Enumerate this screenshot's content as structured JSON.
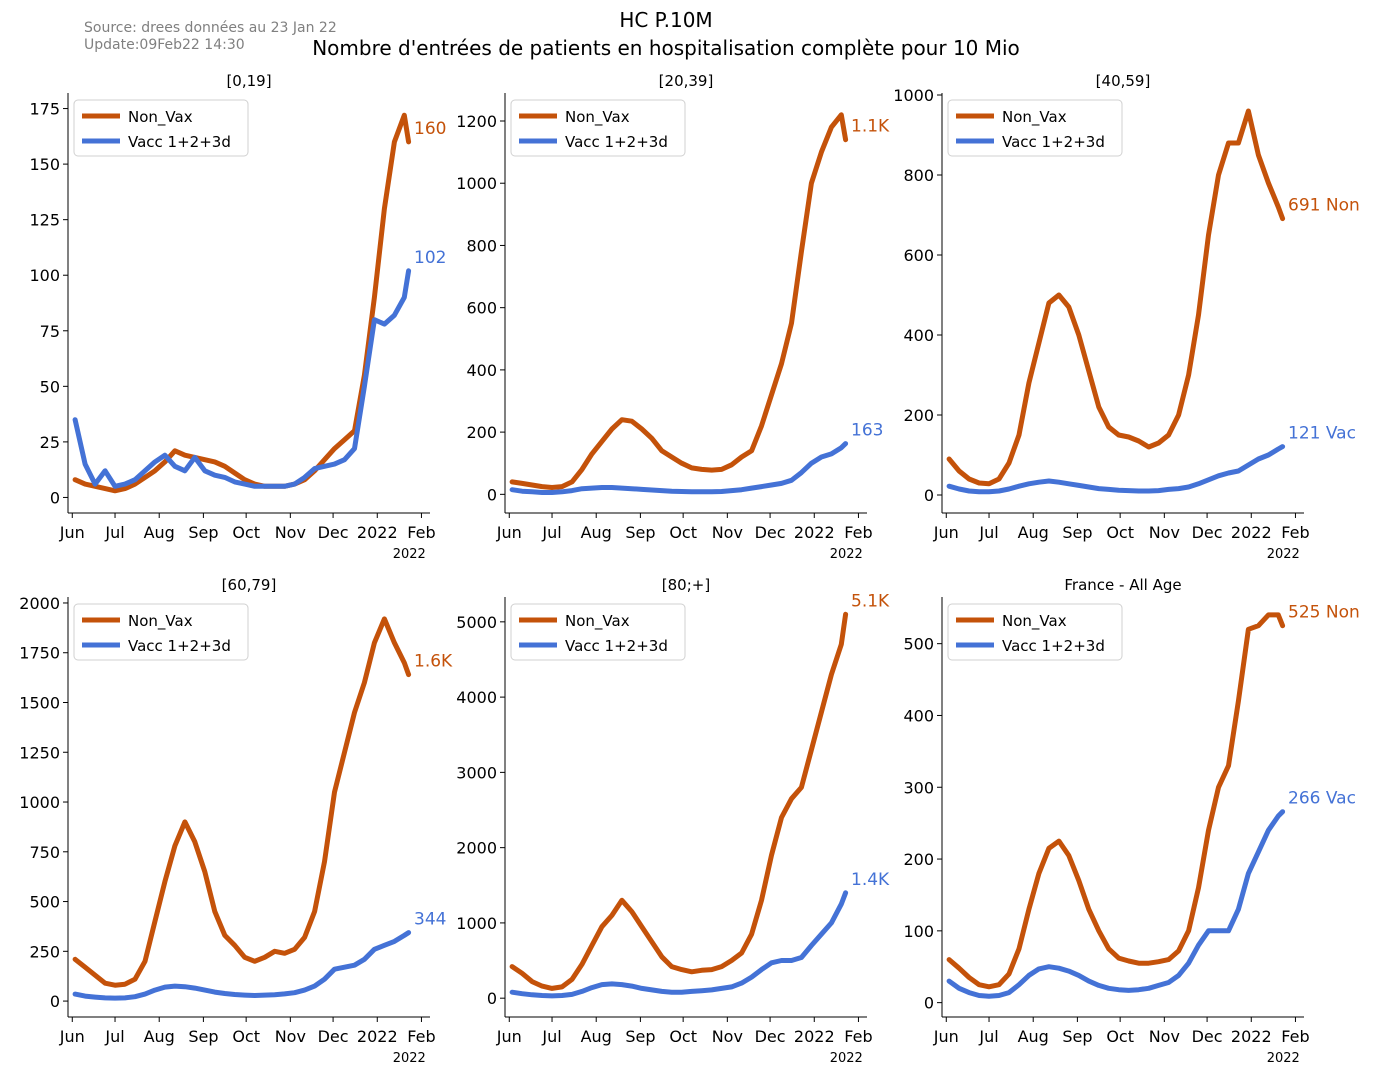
{
  "header": {
    "source": "Source: drees données au 23 Jan 22",
    "update": "Update:09Feb22 14:30",
    "title": "HC P.10M",
    "subtitle": "Nombre d'entrées de patients en hospitalisation complète pour 10 Mio"
  },
  "colors": {
    "non_vax": "#c4520a",
    "vacc": "#4472d6",
    "axis": "#000000"
  },
  "x_tick_labels": [
    "Jun",
    "Jul",
    "Aug",
    "Sep",
    "Oct",
    "Nov",
    "Dec",
    "2022",
    "Feb"
  ],
  "x_year_label": "2022",
  "chart_data": [
    {
      "type": "line",
      "title": "[0,19]",
      "legend": "top-left",
      "x": [
        "2021-06-03",
        "2021-06-10",
        "2021-06-17",
        "2021-06-24",
        "2021-07-01",
        "2021-07-08",
        "2021-07-15",
        "2021-07-22",
        "2021-07-29",
        "2021-08-05",
        "2021-08-12",
        "2021-08-19",
        "2021-08-26",
        "2021-09-02",
        "2021-09-09",
        "2021-09-16",
        "2021-09-23",
        "2021-09-30",
        "2021-10-07",
        "2021-10-14",
        "2021-10-21",
        "2021-10-28",
        "2021-11-04",
        "2021-11-11",
        "2021-11-18",
        "2021-11-25",
        "2021-12-02",
        "2021-12-09",
        "2021-12-16",
        "2021-12-23",
        "2021-12-30",
        "2022-01-06",
        "2022-01-13",
        "2022-01-20",
        "2022-01-23"
      ],
      "series": [
        {
          "name": "Non_Vax",
          "values": [
            8,
            6,
            5,
            4,
            3,
            4,
            6,
            9,
            12,
            16,
            21,
            19,
            18,
            17,
            16,
            14,
            11,
            8,
            6,
            5,
            5,
            5,
            6,
            8,
            12,
            17,
            22,
            26,
            30,
            55,
            90,
            130,
            160,
            172,
            160
          ]
        },
        {
          "name": "Vacc 1+2+3d",
          "values": [
            35,
            15,
            6,
            12,
            5,
            6,
            8,
            12,
            16,
            19,
            14,
            12,
            18,
            12,
            10,
            9,
            7,
            6,
            5,
            5,
            5,
            5,
            6,
            9,
            13,
            14,
            15,
            17,
            22,
            50,
            80,
            78,
            82,
            90,
            102
          ]
        }
      ],
      "end_labels": {
        "non_vax": "160",
        "vacc": "102"
      },
      "y_ticks": [
        0,
        25,
        50,
        75,
        100,
        125,
        150,
        175
      ],
      "ylim": [
        -7,
        182
      ]
    },
    {
      "type": "line",
      "title": "[20,39]",
      "legend": "top-left",
      "x": [
        "2021-06-03",
        "2021-06-10",
        "2021-06-17",
        "2021-06-24",
        "2021-07-01",
        "2021-07-08",
        "2021-07-15",
        "2021-07-22",
        "2021-07-29",
        "2021-08-05",
        "2021-08-12",
        "2021-08-19",
        "2021-08-26",
        "2021-09-02",
        "2021-09-09",
        "2021-09-16",
        "2021-09-23",
        "2021-09-30",
        "2021-10-07",
        "2021-10-14",
        "2021-10-21",
        "2021-10-28",
        "2021-11-04",
        "2021-11-11",
        "2021-11-18",
        "2021-11-25",
        "2021-12-02",
        "2021-12-09",
        "2021-12-16",
        "2021-12-23",
        "2021-12-30",
        "2022-01-06",
        "2022-01-13",
        "2022-01-20",
        "2022-01-23"
      ],
      "series": [
        {
          "name": "Non_Vax",
          "values": [
            40,
            35,
            30,
            25,
            22,
            25,
            40,
            80,
            130,
            170,
            210,
            240,
            235,
            210,
            180,
            140,
            120,
            100,
            85,
            80,
            78,
            80,
            95,
            120,
            140,
            220,
            320,
            420,
            550,
            780,
            1000,
            1100,
            1180,
            1220,
            1140
          ]
        },
        {
          "name": "Vacc 1+2+3d",
          "values": [
            15,
            10,
            8,
            6,
            6,
            8,
            12,
            18,
            20,
            22,
            22,
            20,
            18,
            16,
            14,
            12,
            10,
            9,
            8,
            8,
            8,
            9,
            12,
            15,
            20,
            25,
            30,
            35,
            45,
            70,
            100,
            120,
            130,
            150,
            163
          ]
        }
      ],
      "end_labels": {
        "non_vax": "1.1K",
        "vacc": "163"
      },
      "y_ticks": [
        0,
        200,
        400,
        600,
        800,
        1000,
        1200
      ],
      "ylim": [
        -60,
        1290
      ]
    },
    {
      "type": "line",
      "title": "[40,59]",
      "legend": "top-left",
      "x": [
        "2021-06-03",
        "2021-06-10",
        "2021-06-17",
        "2021-06-24",
        "2021-07-01",
        "2021-07-08",
        "2021-07-15",
        "2021-07-22",
        "2021-07-29",
        "2021-08-05",
        "2021-08-12",
        "2021-08-19",
        "2021-08-26",
        "2021-09-02",
        "2021-09-09",
        "2021-09-16",
        "2021-09-23",
        "2021-09-30",
        "2021-10-07",
        "2021-10-14",
        "2021-10-21",
        "2021-10-28",
        "2021-11-04",
        "2021-11-11",
        "2021-11-18",
        "2021-11-25",
        "2021-12-02",
        "2021-12-09",
        "2021-12-16",
        "2021-12-23",
        "2021-12-30",
        "2022-01-06",
        "2022-01-13",
        "2022-01-20",
        "2022-01-23"
      ],
      "series": [
        {
          "name": "Non_Vax",
          "values": [
            90,
            60,
            40,
            30,
            28,
            40,
            80,
            150,
            280,
            380,
            480,
            500,
            470,
            400,
            310,
            220,
            170,
            150,
            145,
            135,
            120,
            130,
            150,
            200,
            300,
            450,
            650,
            800,
            880,
            880,
            960,
            850,
            780,
            720,
            691
          ]
        },
        {
          "name": "Vacc 1+2+3d",
          "values": [
            22,
            15,
            10,
            8,
            8,
            10,
            15,
            22,
            28,
            32,
            35,
            32,
            28,
            24,
            20,
            16,
            14,
            12,
            11,
            10,
            10,
            11,
            14,
            16,
            20,
            28,
            38,
            48,
            55,
            60,
            75,
            90,
            100,
            115,
            121
          ]
        }
      ],
      "end_labels": {
        "non_vax": "691 Non",
        "vacc": "121 Vac"
      },
      "y_ticks": [
        0,
        200,
        400,
        600,
        800,
        1000
      ],
      "ylim": [
        -45,
        1005
      ]
    },
    {
      "type": "line",
      "title": "[60,79]",
      "legend": "top-left",
      "x": [
        "2021-06-03",
        "2021-06-10",
        "2021-06-17",
        "2021-06-24",
        "2021-07-01",
        "2021-07-08",
        "2021-07-15",
        "2021-07-22",
        "2021-07-29",
        "2021-08-05",
        "2021-08-12",
        "2021-08-19",
        "2021-08-26",
        "2021-09-02",
        "2021-09-09",
        "2021-09-16",
        "2021-09-23",
        "2021-09-30",
        "2021-10-07",
        "2021-10-14",
        "2021-10-21",
        "2021-10-28",
        "2021-11-04",
        "2021-11-11",
        "2021-11-18",
        "2021-11-25",
        "2021-12-02",
        "2021-12-09",
        "2021-12-16",
        "2021-12-23",
        "2021-12-30",
        "2022-01-06",
        "2022-01-13",
        "2022-01-20",
        "2022-01-23"
      ],
      "series": [
        {
          "name": "Non_Vax",
          "values": [
            210,
            170,
            130,
            90,
            80,
            85,
            110,
            200,
            400,
            600,
            780,
            900,
            800,
            650,
            450,
            330,
            280,
            220,
            200,
            220,
            250,
            240,
            260,
            320,
            450,
            700,
            1050,
            1250,
            1450,
            1600,
            1800,
            1920,
            1800,
            1700,
            1640
          ]
        },
        {
          "name": "Vacc 1+2+3d",
          "values": [
            35,
            25,
            20,
            16,
            15,
            16,
            22,
            35,
            55,
            70,
            75,
            72,
            65,
            55,
            45,
            38,
            33,
            30,
            28,
            30,
            32,
            36,
            42,
            55,
            75,
            110,
            160,
            170,
            180,
            210,
            260,
            280,
            300,
            330,
            344
          ]
        }
      ],
      "end_labels": {
        "non_vax": "1.6K",
        "vacc": "344"
      },
      "y_ticks": [
        0,
        250,
        500,
        750,
        1000,
        1250,
        1500,
        1750,
        2000
      ],
      "ylim": [
        -80,
        2030
      ]
    },
    {
      "type": "line",
      "title": "[80;+]",
      "legend": "top-left",
      "x": [
        "2021-06-03",
        "2021-06-10",
        "2021-06-17",
        "2021-06-24",
        "2021-07-01",
        "2021-07-08",
        "2021-07-15",
        "2021-07-22",
        "2021-07-29",
        "2021-08-05",
        "2021-08-12",
        "2021-08-19",
        "2021-08-26",
        "2021-09-02",
        "2021-09-09",
        "2021-09-16",
        "2021-09-23",
        "2021-09-30",
        "2021-10-07",
        "2021-10-14",
        "2021-10-21",
        "2021-10-28",
        "2021-11-04",
        "2021-11-11",
        "2021-11-18",
        "2021-11-25",
        "2021-12-02",
        "2021-12-09",
        "2021-12-16",
        "2021-12-23",
        "2021-12-30",
        "2022-01-06",
        "2022-01-13",
        "2022-01-20",
        "2022-01-23"
      ],
      "series": [
        {
          "name": "Non_Vax",
          "values": [
            420,
            330,
            220,
            160,
            130,
            150,
            250,
            450,
            700,
            950,
            1100,
            1300,
            1150,
            950,
            750,
            550,
            420,
            380,
            350,
            370,
            380,
            420,
            500,
            600,
            850,
            1300,
            1900,
            2400,
            2650,
            2800,
            3300,
            3800,
            4300,
            4700,
            5100
          ]
        },
        {
          "name": "Vacc 1+2+3d",
          "values": [
            80,
            60,
            45,
            35,
            30,
            35,
            50,
            90,
            140,
            180,
            190,
            180,
            160,
            130,
            110,
            90,
            80,
            80,
            90,
            100,
            110,
            130,
            150,
            200,
            280,
            380,
            470,
            500,
            500,
            540,
            700,
            850,
            1000,
            1250,
            1400
          ]
        }
      ],
      "end_labels": {
        "non_vax": "5.1K",
        "vacc": "1.4K"
      },
      "y_ticks": [
        0,
        1000,
        2000,
        3000,
        4000,
        5000
      ],
      "ylim": [
        -250,
        5330
      ]
    },
    {
      "type": "line",
      "title": "France - All Age",
      "legend": "top-left",
      "x": [
        "2021-06-03",
        "2021-06-10",
        "2021-06-17",
        "2021-06-24",
        "2021-07-01",
        "2021-07-08",
        "2021-07-15",
        "2021-07-22",
        "2021-07-29",
        "2021-08-05",
        "2021-08-12",
        "2021-08-19",
        "2021-08-26",
        "2021-09-02",
        "2021-09-09",
        "2021-09-16",
        "2021-09-23",
        "2021-09-30",
        "2021-10-07",
        "2021-10-14",
        "2021-10-21",
        "2021-10-28",
        "2021-11-04",
        "2021-11-11",
        "2021-11-18",
        "2021-11-25",
        "2021-12-02",
        "2021-12-09",
        "2021-12-16",
        "2021-12-23",
        "2021-12-30",
        "2022-01-06",
        "2022-01-13",
        "2022-01-20",
        "2022-01-23"
      ],
      "series": [
        {
          "name": "Non_Vax",
          "values": [
            60,
            48,
            35,
            25,
            22,
            25,
            40,
            75,
            130,
            180,
            215,
            225,
            205,
            170,
            130,
            100,
            75,
            62,
            58,
            55,
            55,
            57,
            60,
            72,
            100,
            160,
            240,
            300,
            330,
            420,
            520,
            525,
            540,
            540,
            525
          ]
        },
        {
          "name": "Vacc 1+2+3d",
          "values": [
            30,
            20,
            14,
            10,
            9,
            10,
            14,
            25,
            38,
            47,
            50,
            48,
            44,
            38,
            30,
            24,
            20,
            18,
            17,
            18,
            20,
            24,
            28,
            38,
            55,
            80,
            100,
            100,
            100,
            130,
            180,
            210,
            240,
            260,
            266
          ]
        }
      ],
      "end_labels": {
        "non_vax": "525 Non",
        "vacc": "266 Vac"
      },
      "y_ticks": [
        0,
        100,
        200,
        300,
        400,
        500
      ],
      "ylim": [
        -20,
        565
      ]
    }
  ]
}
